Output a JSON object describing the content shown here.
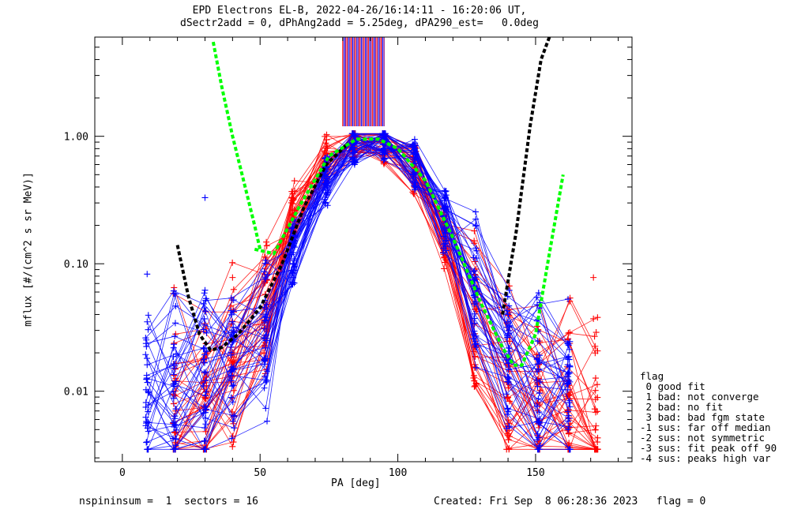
{
  "title_line1": "EPD Electrons EL-B, 2022-04-26/16:14:11 - 16:20:06 UT,",
  "title_line2": "dSectr2add = 0, dPhAng2add = 5.25deg, dPA290_est=   0.0deg",
  "footer_left": "nspininsum =  1  sectors = 16",
  "footer_right": "Created: Fri Sep  8 06:28:36 2023   flag = 0",
  "legend": {
    "heading": "flag",
    "entries": [
      " 0 good fit",
      " 1 bad: not converge",
      " 2 bad: no fit",
      " 3 bad: bad fgm state",
      "-1 sus: far off median",
      "-2 sus: not symmetric",
      "-3 sus: fit peak off 90",
      "-4 sus: peaks high var"
    ]
  },
  "colors": {
    "series_a": "#ff0000",
    "series_b": "#0000ff",
    "fit_green": "#00ff00",
    "fit_black": "#000000",
    "axis": "#000000",
    "spike_purple": "#800080"
  },
  "chart_data": {
    "type": "line",
    "xlabel": "PA [deg]",
    "ylabel": "mflux [#/(cm^2 s sr MeV)]",
    "xlim": [
      -10,
      185
    ],
    "ylim": [
      0.0028,
      6.0
    ],
    "yscale": "log",
    "x_ticks": [
      0,
      50,
      100,
      150
    ],
    "x_minor_step": 10,
    "y_ticks": [
      0.01,
      0.1,
      1.0
    ],
    "y_tick_labels": [
      "0.01",
      "0.10",
      "1.00"
    ],
    "pa_bins": [
      9,
      19,
      30,
      40,
      52,
      62,
      74,
      84,
      95,
      106,
      117,
      128,
      140,
      151,
      162,
      172
    ],
    "series": [
      {
        "name": "red sweeps",
        "color": "#ff0000",
        "values": [
          null,
          0.008,
          0.011,
          0.02,
          0.06,
          0.25,
          0.65,
          0.92,
          0.85,
          0.55,
          0.16,
          0.04,
          0.016,
          0.011,
          0.008,
          0.006
        ]
      },
      {
        "name": "blue sweeps",
        "color": "#0000ff",
        "values": [
          0.008,
          0.009,
          0.012,
          0.017,
          0.03,
          0.12,
          0.45,
          0.85,
          0.9,
          0.6,
          0.22,
          0.055,
          0.016,
          0.011,
          0.01,
          null
        ]
      }
    ],
    "fit_green": {
      "x": [
        48,
        55,
        65,
        75,
        85,
        93,
        100,
        110,
        120,
        130,
        138,
        142,
        145,
        150,
        155,
        160
      ],
      "y": [
        0.13,
        0.12,
        0.3,
        0.7,
        0.95,
        0.95,
        0.8,
        0.45,
        0.16,
        0.05,
        0.022,
        0.016,
        0.016,
        0.028,
        0.12,
        0.5
      ]
    },
    "fit_green_left": {
      "x": [
        33,
        36,
        40,
        44,
        48,
        50
      ],
      "y": [
        5.5,
        2.5,
        1.0,
        0.45,
        0.2,
        0.13
      ]
    },
    "fit_black": {
      "x": [
        20,
        24,
        28,
        32,
        36,
        42,
        50,
        58,
        66,
        74,
        82
      ],
      "y": [
        0.14,
        0.055,
        0.028,
        0.021,
        0.022,
        0.028,
        0.045,
        0.1,
        0.28,
        0.6,
        0.88
      ]
    },
    "fit_black_right": {
      "x": [
        138,
        143,
        148,
        152,
        155
      ],
      "y": [
        0.04,
        0.18,
        1.2,
        4.0,
        6.0
      ]
    },
    "outlier_points": [
      {
        "x": 9,
        "y": 0.083,
        "color": "#0000ff"
      },
      {
        "x": 30,
        "y": 0.33,
        "color": "#0000ff"
      },
      {
        "x": 40,
        "y": 0.078,
        "color": "#ff0000"
      },
      {
        "x": 171,
        "y": 0.078,
        "color": "#ff0000"
      },
      {
        "x": 171,
        "y": 0.037,
        "color": "#ff0000"
      },
      {
        "x": 172,
        "y": 0.029,
        "color": "#ff0000"
      },
      {
        "x": 30,
        "y": 0.062,
        "color": "#0000ff"
      },
      {
        "x": 162,
        "y": 0.023,
        "color": "#0000ff"
      }
    ],
    "spike_lines": {
      "pa_from": 80,
      "pa_to": 95,
      "count": 30
    }
  }
}
